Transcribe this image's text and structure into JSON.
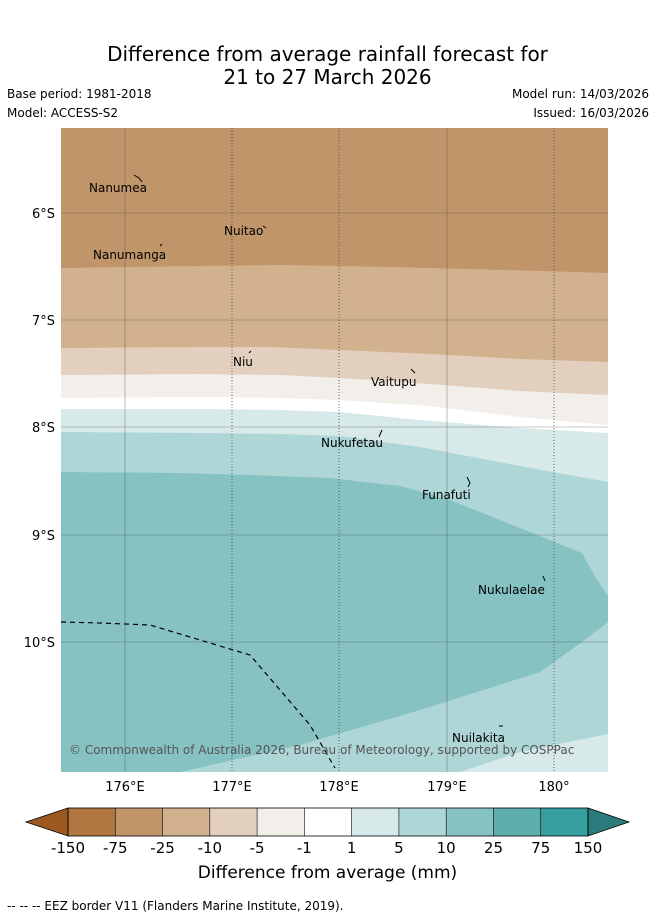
{
  "header": {
    "title_line1": "Difference from average rainfall forecast for",
    "title_line2": "21 to 27 March 2026",
    "base_period": "Base period: 1981-2018",
    "model": "Model: ACCESS-S2",
    "model_run": "Model run: 14/03/2026",
    "issued": "Issued: 16/03/2026"
  },
  "map": {
    "lat_labels": [
      "6°S",
      "7°S",
      "8°S",
      "9°S",
      "10°S"
    ],
    "lon_labels": [
      "176°E",
      "177°E",
      "178°E",
      "179°E",
      "180°"
    ],
    "places": [
      "Nanumea",
      "Nuitao",
      "Nanumanga",
      "Niu",
      "Vaitupu",
      "Nukufetau",
      "Funafuti",
      "Nukulaelae",
      "Nuilakita"
    ],
    "copyright": "© Commonwealth of Australia 2026, Bureau of Meteorology, supported by COSPPac"
  },
  "colorbar": {
    "ticks": [
      "-150",
      "-75",
      "-25",
      "-10",
      "-5",
      "-1",
      "1",
      "5",
      "10",
      "25",
      "75",
      "150"
    ],
    "colors": [
      "#9c5a21",
      "#b07840",
      "#c1956a",
      "#d2b18f",
      "#e3cfbe",
      "#f2eee9",
      "#ffffff",
      "#d7eae9",
      "#aed6d6",
      "#86c2c2",
      "#5eaeae",
      "#369e9e",
      "#2a7c7c"
    ],
    "title": "Difference from average (mm)"
  },
  "footnote": "-- -- -- EEZ border V11 (Flanders Marine Institute, 2019)."
}
